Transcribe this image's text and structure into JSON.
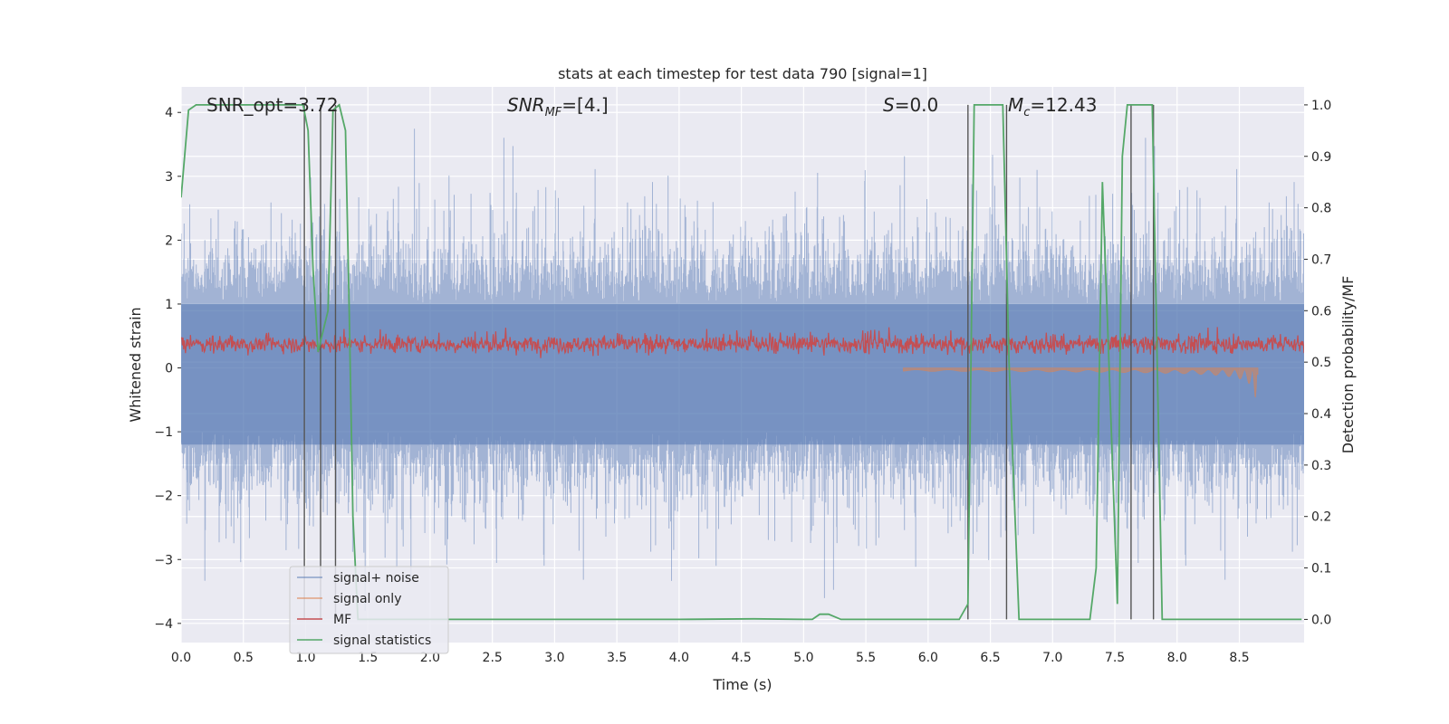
{
  "chart_data": {
    "type": "line",
    "title": "stats at each timestep for test data 790 [signal=1]",
    "xlabel": "Time (s)",
    "ylabel_left": "Whitened strain",
    "ylabel_right": "Detection probability/MF",
    "xlim": [
      0,
      9.02
    ],
    "ylim_left": [
      -4.3,
      4.4
    ],
    "ylim_right": [
      -0.045,
      1.035
    ],
    "x_ticks": [
      "0.0",
      "0.5",
      "1.0",
      "1.5",
      "2.0",
      "2.5",
      "3.0",
      "3.5",
      "4.0",
      "4.5",
      "5.0",
      "5.5",
      "6.0",
      "6.5",
      "7.0",
      "7.5",
      "8.0",
      "8.5"
    ],
    "y_left_ticks": [
      "4",
      "3",
      "2",
      "1",
      "0",
      "−1",
      "−2",
      "−3",
      "−4"
    ],
    "y_right_ticks": [
      "1.0",
      "0.9",
      "0.8",
      "0.7",
      "0.6",
      "0.5",
      "0.4",
      "0.3",
      "0.2",
      "0.1",
      "0.0"
    ],
    "annotations": {
      "snr_opt": "SNR_opt=3.72",
      "snr_mf_main": "SNR",
      "snr_mf_sub": "MF",
      "snr_mf_value": "=[4.]",
      "s_var": "S",
      "s_value": "=0.0",
      "mc_var": "M",
      "mc_sub": "c",
      "mc_value": "=12.43"
    },
    "legend": {
      "location": "lower-left",
      "entries": [
        {
          "label": "signal+ noise",
          "color": "#4c72b0"
        },
        {
          "label": "signal only",
          "color": "#dd8452"
        },
        {
          "label": "MF",
          "color": "#c44e52"
        },
        {
          "label": "signal statistics",
          "color": "#55a868"
        }
      ]
    },
    "series": [
      {
        "name": "signal+ noise",
        "axis": "left",
        "style": "dense noise, envelope about ±2.5 with peaks near ±3.5"
      },
      {
        "name": "signal only",
        "axis": "left",
        "style": "chirp growing to about −0.75 near t=8.65 s"
      },
      {
        "name": "MF",
        "axis": "right",
        "style": "dense noise between 0.50 and 0.58"
      },
      {
        "name": "signal statistics",
        "axis": "right",
        "x": [
          0.0,
          0.06,
          0.12,
          0.3,
          0.5,
          0.8,
          0.98,
          1.02,
          1.06,
          1.1,
          1.14,
          1.18,
          1.22,
          1.27,
          1.32,
          1.35,
          1.38,
          1.42,
          1.5,
          2.0,
          3.0,
          4.0,
          4.6,
          5.0,
          5.07,
          5.13,
          5.2,
          5.3,
          6.0,
          6.25,
          6.32,
          6.37,
          6.6,
          6.65,
          6.73,
          6.78,
          7.0,
          7.3,
          7.35,
          7.4,
          7.46,
          7.52,
          7.56,
          7.6,
          7.66,
          7.7,
          7.8,
          7.84,
          7.88,
          7.94,
          8.0,
          8.5,
          9.0
        ],
        "y": [
          0.82,
          0.99,
          1.0,
          1.0,
          1.0,
          1.0,
          1.0,
          0.95,
          0.68,
          0.52,
          0.56,
          0.6,
          0.99,
          1.0,
          0.95,
          0.6,
          0.2,
          0.0,
          0.0,
          0.0,
          0.0,
          0.0,
          0.001,
          0.0,
          0.0,
          0.01,
          0.01,
          0.0,
          0.0,
          0.0,
          0.03,
          1.0,
          1.0,
          0.5,
          0.0,
          0.0,
          0.0,
          0.0,
          0.1,
          0.85,
          0.45,
          0.03,
          0.9,
          1.0,
          1.0,
          1.0,
          1.0,
          0.5,
          0.0,
          0.0,
          0.0,
          0.0,
          0.0
        ]
      },
      {
        "name": "vertical markers",
        "axis": "right",
        "x": [
          0.99,
          1.12,
          1.24,
          6.32,
          6.63,
          7.63,
          7.81
        ],
        "y_range": [
          0.0,
          1.0
        ]
      }
    ]
  }
}
